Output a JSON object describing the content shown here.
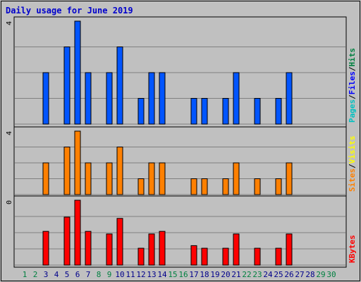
{
  "chart_data": {
    "type": "bar",
    "title": "Daily usage for June 2019",
    "days": [
      "1",
      "2",
      "3",
      "4",
      "5",
      "6",
      "7",
      "8",
      "9",
      "10",
      "11",
      "12",
      "13",
      "14",
      "15",
      "16",
      "17",
      "18",
      "19",
      "20",
      "21",
      "22",
      "23",
      "24",
      "25",
      "26",
      "27",
      "28",
      "29",
      "30"
    ],
    "weekend_days": [
      1,
      2,
      8,
      9,
      15,
      16,
      22,
      23,
      29,
      30
    ],
    "colors": {
      "background": "#c0c0c0",
      "title": "#0000cc",
      "weekday_label": "#00008b",
      "weekend_label": "#008040",
      "hits": "#008040",
      "files": "#0000ff",
      "pages": "#00c0c0",
      "visits": "#ffff00",
      "sites": "#ff8000",
      "kbytes": "#ff0000"
    },
    "panels": [
      {
        "id": "hits-files-pages",
        "ymax_label": "4",
        "ymax": 4,
        "legend": [
          {
            "text": "Pages",
            "color": "#00c0c0"
          },
          {
            "text": "Files",
            "color": "#0000ff"
          },
          {
            "text": "Hits",
            "color": "#008040"
          }
        ],
        "bar_color": "#0055ff",
        "values": [
          0,
          0,
          2,
          0,
          3,
          4,
          2,
          0,
          2,
          3,
          0,
          1,
          2,
          2,
          0,
          0,
          1,
          1,
          0,
          1,
          2,
          0,
          1,
          0,
          1,
          2,
          0,
          0,
          0,
          0
        ]
      },
      {
        "id": "visits-sites",
        "ymax_label": "4",
        "ymax": 4,
        "legend": [
          {
            "text": "Sites",
            "color": "#ff8000"
          },
          {
            "text": "Visits",
            "color": "#ffff00"
          }
        ],
        "bar_color": "#ff8000",
        "values": [
          0,
          0,
          2,
          0,
          3,
          4,
          2,
          0,
          2,
          3,
          0,
          1,
          2,
          2,
          0,
          0,
          1,
          1,
          0,
          1,
          2,
          0,
          1,
          0,
          1,
          2,
          0,
          0,
          0,
          0
        ]
      },
      {
        "id": "kbytes",
        "ymax_label": "0",
        "ymax": 100,
        "legend": [
          {
            "text": "KBytes",
            "color": "#ff0000"
          }
        ],
        "bar_color": "#ff0000",
        "values": [
          0,
          0,
          52,
          0,
          74,
          100,
          52,
          0,
          48,
          72,
          0,
          26,
          48,
          52,
          0,
          0,
          30,
          26,
          0,
          26,
          48,
          0,
          26,
          0,
          26,
          48,
          0,
          0,
          0,
          0
        ]
      }
    ]
  }
}
